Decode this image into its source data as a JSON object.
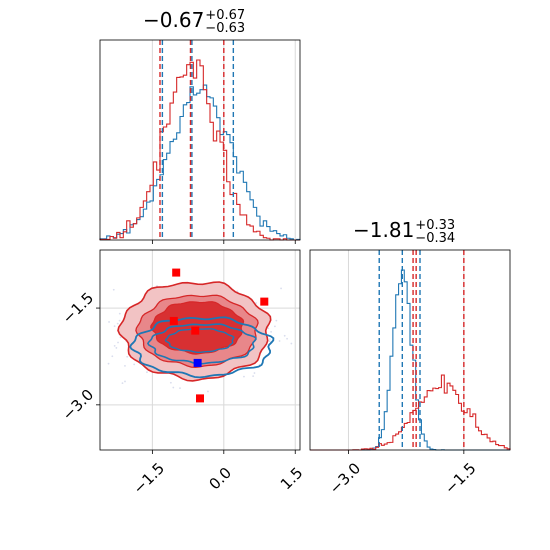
{
  "chart_data": {
    "type": "corner",
    "grid": true,
    "colors": {
      "blue": "#1f77b4",
      "red": "#d62728",
      "red_fill": "#e8787a"
    },
    "panels": [
      {
        "name": "hist-top-left",
        "type": "histogram",
        "title": {
          "main": "−0.67",
          "plus": "+0.67",
          "minus": "−0.63"
        },
        "xlim": [
          -2.6,
          1.6
        ],
        "blue_quantile_lines": [
          -1.29,
          -0.67,
          0.2
        ],
        "red_quantile_lines": [
          -1.34,
          -0.7,
          0.0
        ],
        "series": [
          {
            "name": "blue",
            "color": "#1f77b4",
            "center": -0.5,
            "width": 0.65
          },
          {
            "name": "red",
            "color": "#d62728",
            "center": -0.7,
            "width": 0.55
          }
        ]
      },
      {
        "name": "hist-bottom-right",
        "type": "histogram",
        "title": {
          "main": "−1.81",
          "plus": "+0.33",
          "minus": "−0.34"
        },
        "xlim": [
          -3.5,
          -0.9
        ],
        "xticks": [
          "−3.0",
          "−1.5"
        ],
        "xtick_values": [
          -3.0,
          -1.5
        ],
        "blue_quantile_lines": [
          -2.6,
          -2.3,
          -2.07
        ],
        "red_quantile_lines": [
          -2.16,
          -2.12,
          -1.5
        ],
        "series": [
          {
            "name": "blue",
            "color": "#1f77b4",
            "center": -2.3,
            "width": 0.12
          },
          {
            "name": "red",
            "color": "#d62728",
            "center": -1.8,
            "width": 0.33
          }
        ]
      },
      {
        "name": "scatter-contour-bottom-left",
        "type": "scatter",
        "xlim": [
          -2.6,
          1.6
        ],
        "ylim": [
          -3.7,
          -0.6
        ],
        "xticks": [
          "−1.5",
          "0.0",
          "1.5"
        ],
        "xtick_values": [
          -1.5,
          0.0,
          1.5
        ],
        "yticks": [
          "−1.5",
          "−3.0"
        ],
        "ytick_values": [
          -1.5,
          -3.0
        ],
        "red_markers": [
          {
            "x": -1.0,
            "y": -0.95
          },
          {
            "x": 0.85,
            "y": -1.4
          },
          {
            "x": -1.05,
            "y": -1.7
          },
          {
            "x": -0.6,
            "y": -1.85
          },
          {
            "x": -0.5,
            "y": -2.9
          }
        ],
        "blue_markers": [
          {
            "x": -0.55,
            "y": -2.35
          }
        ]
      }
    ]
  }
}
